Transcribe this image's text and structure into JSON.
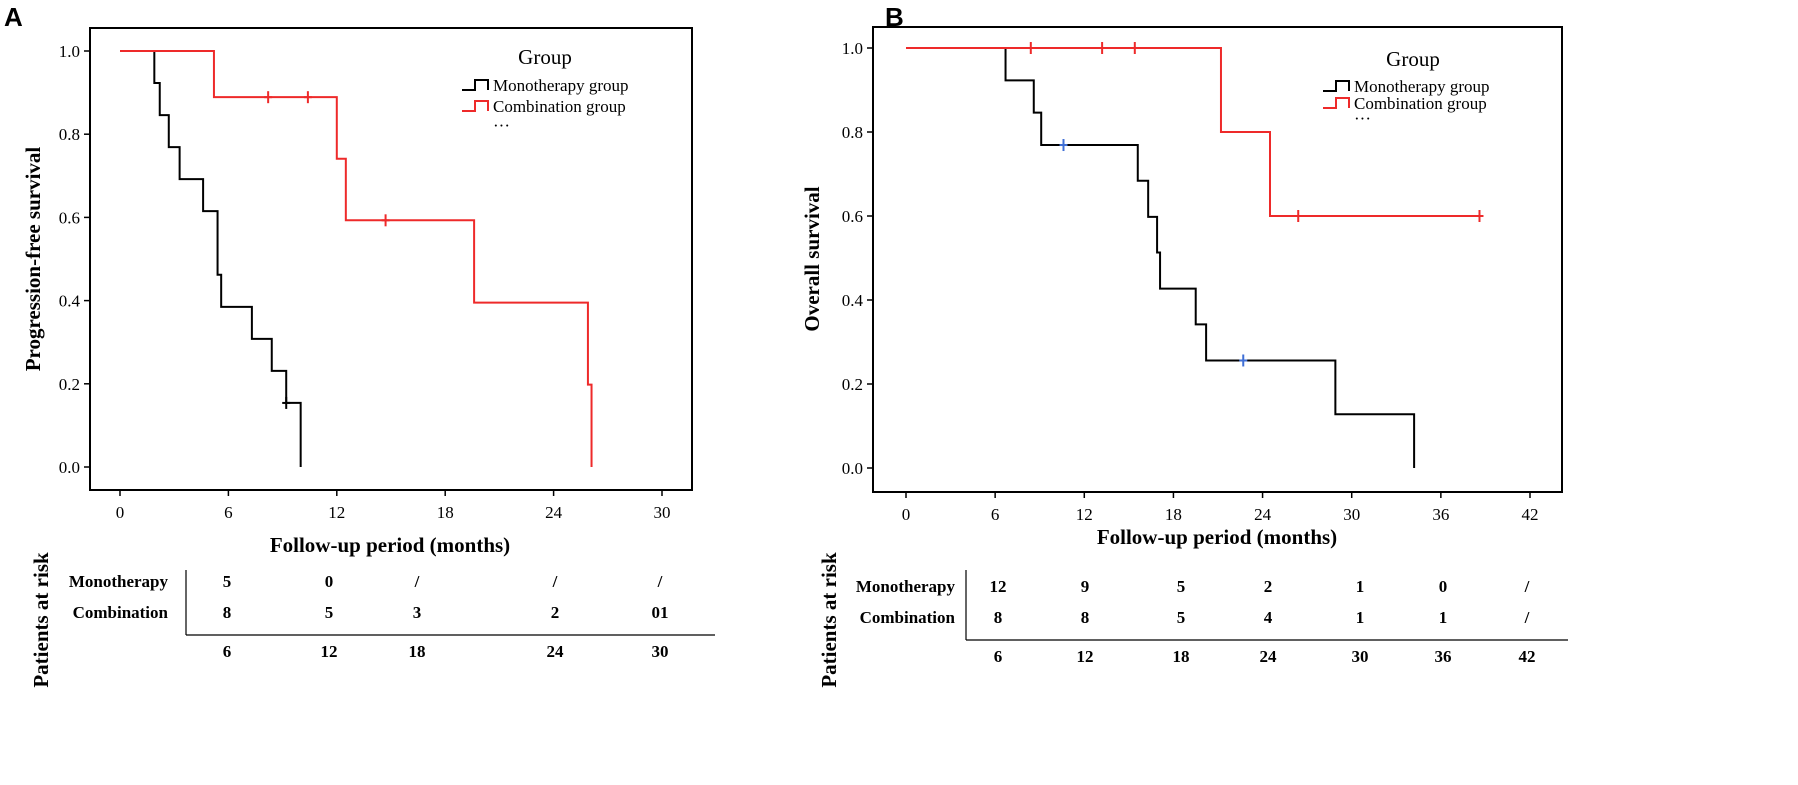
{
  "chart_data": [
    {
      "panel": "A",
      "type": "line",
      "subtype": "kaplan-meier",
      "ylabel": "Progression-free survival",
      "xlabel": "Follow-up period (months)",
      "xlim": [
        0,
        30
      ],
      "ylim": [
        0,
        1
      ],
      "xticks": [
        "0",
        "6",
        "12",
        "18",
        "24",
        "30"
      ],
      "yticks": [
        "0.0",
        "0.2",
        "0.4",
        "0.6",
        "0.8",
        "1.0"
      ],
      "legend": {
        "title": "Group",
        "items": [
          "Monotherapy group",
          "Combination group"
        ],
        "extra": "···",
        "position": "top-right"
      },
      "series": [
        {
          "name": "Monotherapy group",
          "color": "#000000",
          "steps": [
            [
              0,
              1.0
            ],
            [
              1.9,
              0.923
            ],
            [
              2.2,
              0.846
            ],
            [
              2.7,
              0.769
            ],
            [
              3.3,
              0.692
            ],
            [
              4.6,
              0.615
            ],
            [
              5.4,
              0.462
            ],
            [
              5.6,
              0.385
            ],
            [
              7.3,
              0.308
            ],
            [
              8.4,
              0.231
            ],
            [
              9.2,
              0.154
            ],
            [
              10.0,
              0.0
            ]
          ],
          "censored": [
            [
              9.2,
              0.154
            ]
          ]
        },
        {
          "name": "Combination group",
          "color": "#ee2a2a",
          "steps": [
            [
              0,
              1.0
            ],
            [
              5.2,
              0.889
            ],
            [
              12.0,
              0.741
            ],
            [
              12.5,
              0.593
            ],
            [
              19.6,
              0.395
            ],
            [
              25.9,
              0.198
            ],
            [
              26.1,
              0.0
            ]
          ],
          "censored": [
            [
              8.2,
              0.889
            ],
            [
              10.4,
              0.889
            ],
            [
              14.7,
              0.593
            ]
          ]
        }
      ],
      "risk_table": {
        "title": "Patients at risk",
        "rows": [
          {
            "label": "Monotherapy",
            "values": [
              "5",
              "0",
              "/",
              "/",
              "/"
            ]
          },
          {
            "label": "Combination",
            "values": [
              "8",
              "5",
              "3",
              "2",
              "01"
            ]
          }
        ],
        "times": [
          "6",
          "12",
          "18",
          "24",
          "30"
        ]
      }
    },
    {
      "panel": "B",
      "type": "line",
      "subtype": "kaplan-meier",
      "ylabel": "Overall survival",
      "xlabel": "Follow-up period (months)",
      "xlim": [
        0,
        42
      ],
      "ylim": [
        0,
        1
      ],
      "xticks": [
        "0",
        "6",
        "12",
        "18",
        "24",
        "30",
        "36",
        "42"
      ],
      "yticks": [
        "0.0",
        "0.2",
        "0.4",
        "0.6",
        "0.8",
        "1.0"
      ],
      "legend": {
        "title": "Group",
        "items": [
          "Monotherapy group",
          "Combination group"
        ],
        "extra": "···",
        "position": "top-right"
      },
      "series": [
        {
          "name": "Monotherapy group",
          "color": "#000000",
          "steps": [
            [
              0,
              1.0
            ],
            [
              6.7,
              0.923
            ],
            [
              8.6,
              0.846
            ],
            [
              9.1,
              0.769
            ],
            [
              15.6,
              0.684
            ],
            [
              16.3,
              0.598
            ],
            [
              16.9,
              0.513
            ],
            [
              17.1,
              0.427
            ],
            [
              19.5,
              0.342
            ],
            [
              20.2,
              0.256
            ],
            [
              28.9,
              0.128
            ],
            [
              34.2,
              0.0
            ]
          ],
          "censored": [
            [
              10.6,
              0.769
            ],
            [
              22.7,
              0.256
            ]
          ],
          "censor_color": "#3f6fd6"
        },
        {
          "name": "Combination group",
          "color": "#ee2a2a",
          "steps": [
            [
              0,
              1.0
            ],
            [
              21.2,
              0.8
            ],
            [
              24.5,
              0.6
            ],
            [
              38.6,
              0.6
            ]
          ],
          "censored": [
            [
              8.4,
              1.0
            ],
            [
              13.2,
              1.0
            ],
            [
              15.4,
              1.0
            ],
            [
              26.4,
              0.6
            ],
            [
              38.6,
              0.6
            ]
          ]
        }
      ],
      "risk_table": {
        "title": "Patients at risk",
        "rows": [
          {
            "label": "Monotherapy",
            "values": [
              "12",
              "9",
              "5",
              "2",
              "1",
              "0",
              "/"
            ]
          },
          {
            "label": "Combination",
            "values": [
              "8",
              "8",
              "5",
              "4",
              "1",
              "1",
              "/"
            ]
          }
        ],
        "times": [
          "6",
          "12",
          "18",
          "24",
          "30",
          "36",
          "42"
        ]
      }
    }
  ]
}
